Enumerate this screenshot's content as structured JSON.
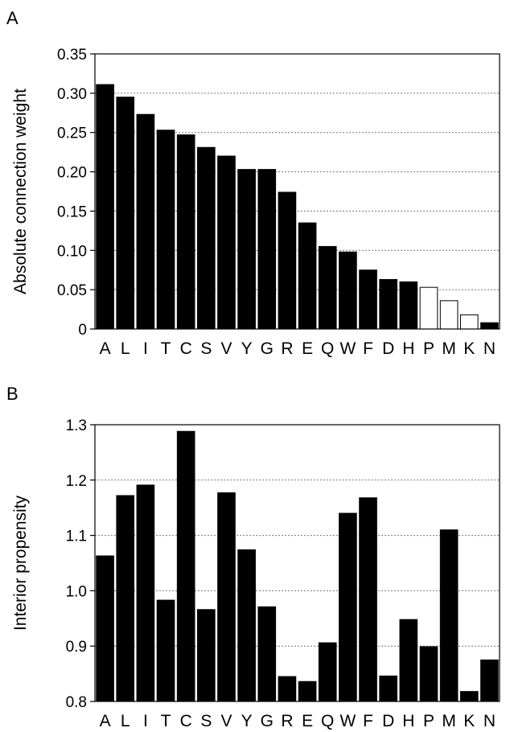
{
  "chart_data": [
    {
      "panel_label": "A",
      "type": "bar",
      "categories": [
        "A",
        "L",
        "I",
        "T",
        "C",
        "S",
        "V",
        "Y",
        "G",
        "R",
        "E",
        "Q",
        "W",
        "F",
        "D",
        "H",
        "P",
        "M",
        "K",
        "N"
      ],
      "values": [
        0.311,
        0.295,
        0.273,
        0.253,
        0.247,
        0.231,
        0.22,
        0.203,
        0.203,
        0.174,
        0.135,
        0.105,
        0.098,
        0.075,
        0.063,
        0.06,
        0.053,
        0.036,
        0.018,
        0.008
      ],
      "bar_fill": [
        "#000000",
        "#000000",
        "#000000",
        "#000000",
        "#000000",
        "#000000",
        "#000000",
        "#000000",
        "#000000",
        "#000000",
        "#000000",
        "#000000",
        "#000000",
        "#000000",
        "#000000",
        "#000000",
        "#ffffff",
        "#ffffff",
        "#ffffff",
        "#000000"
      ],
      "ylabel": "Absolute connection weight",
      "ylim": [
        0,
        0.35
      ],
      "yticks": [
        "0",
        "0.05",
        "0.10",
        "0.15",
        "0.20",
        "0.25",
        "0.30",
        "0.35"
      ],
      "grid": "horizontal dotted"
    },
    {
      "panel_label": "B",
      "type": "bar",
      "categories": [
        "A",
        "L",
        "I",
        "T",
        "C",
        "S",
        "V",
        "Y",
        "G",
        "R",
        "E",
        "Q",
        "W",
        "F",
        "D",
        "H",
        "P",
        "M",
        "K",
        "N"
      ],
      "values": [
        1.063,
        1.172,
        1.191,
        0.983,
        1.288,
        0.966,
        1.177,
        1.074,
        0.971,
        0.845,
        0.836,
        0.906,
        1.14,
        1.168,
        0.846,
        0.948,
        0.899,
        1.11,
        0.818,
        0.875
      ],
      "ylabel": "Interior propensity",
      "ylim": [
        0.8,
        1.3
      ],
      "yticks": [
        "0.8",
        "0.9",
        "1.0",
        "1.1",
        "1.2",
        "1.3"
      ],
      "grid": "horizontal dotted"
    }
  ]
}
